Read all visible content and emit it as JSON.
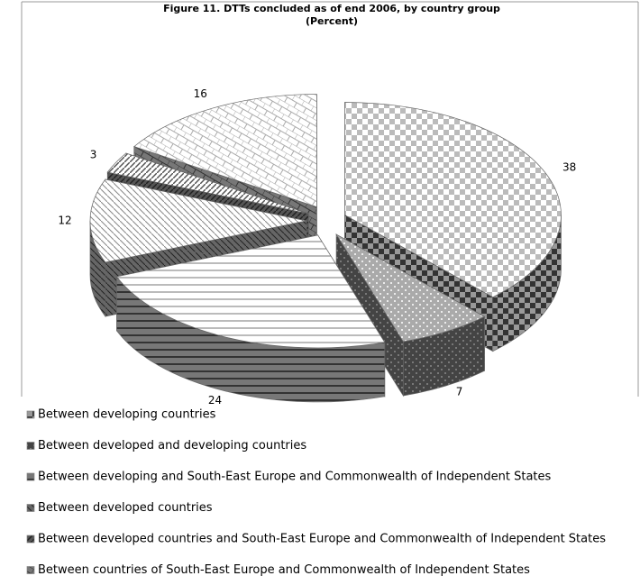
{
  "chart_data": {
    "type": "pie",
    "title": "Figure 11.  DTTs concluded as of end 2006, by country group",
    "subtitle": "(Percent)",
    "categories": [
      "Between developing countries",
      "Between developed and developing countries",
      "Between developing and South-East Europe and Commonwealth of Independent States",
      "Between developed countries",
      "Between developed countries and South-East Europe and Commonwealth of Independent States",
      "Between countries of South-East Europe and Commonwealth of Independent States"
    ],
    "values": [
      38,
      7,
      24,
      12,
      3,
      16
    ]
  }
}
